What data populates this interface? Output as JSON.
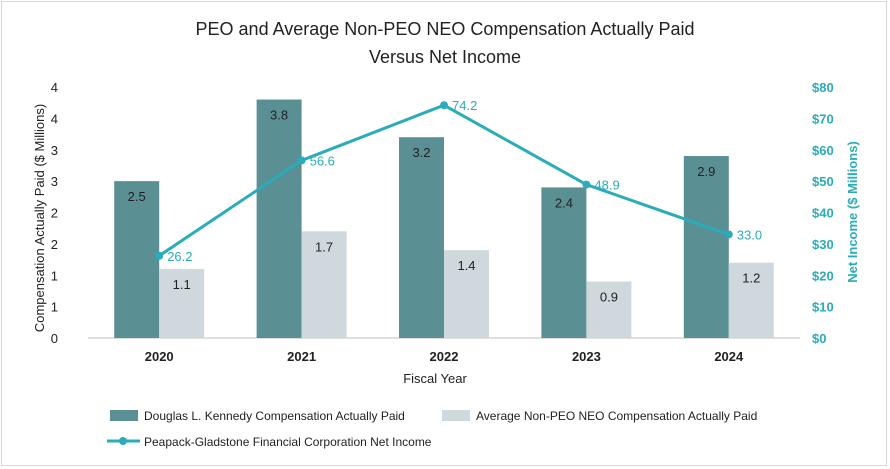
{
  "chart_data": {
    "type": "bar",
    "title_lines": [
      "PEO and Average Non-PEO NEO Compensation Actually Paid",
      "Versus Net Income"
    ],
    "xlabel": "Fiscal Year",
    "ylabel": "Compensation Actually Paid ($ Millions)",
    "y2label": "Net Income ($ Millions)",
    "categories": [
      "2020",
      "2021",
      "2022",
      "2023",
      "2024"
    ],
    "ylim": [
      0,
      4
    ],
    "y_ticks": [
      0,
      0.5,
      1,
      1.5,
      2,
      2.5,
      3,
      3.5,
      4
    ],
    "y_tick_labels": [
      "0",
      "1",
      "1",
      "2",
      "2",
      "3",
      "3",
      "4",
      "4"
    ],
    "y2lim": [
      0,
      80
    ],
    "y2_ticks": [
      0,
      10,
      20,
      30,
      40,
      50,
      60,
      70,
      80
    ],
    "y2_tick_labels": [
      "$0",
      "$10",
      "$20",
      "$30",
      "$40",
      "$50",
      "$60",
      "$70",
      "$80"
    ],
    "series": [
      {
        "name": "Douglas L. Kennedy Compensation Actually Paid",
        "kind": "bar",
        "axis": "left",
        "color": "#5a9093",
        "values": [
          2.5,
          3.8,
          3.2,
          2.4,
          2.9
        ],
        "labels": [
          "2.5",
          "3.8",
          "3.2",
          "2.4",
          "2.9"
        ]
      },
      {
        "name": "Average Non-PEO NEO Compensation Actually Paid",
        "kind": "bar",
        "axis": "left",
        "color": "#cfd8dc",
        "values": [
          1.1,
          1.7,
          1.4,
          0.9,
          1.2
        ],
        "labels": [
          "1.1",
          "1.7",
          "1.4",
          "0.9",
          "1.2"
        ]
      },
      {
        "name": "Peapack-Gladstone Financial Corporation Net Income",
        "kind": "line",
        "axis": "right",
        "color": "#2aacba",
        "values": [
          26.2,
          56.6,
          74.2,
          48.9,
          33.0
        ],
        "labels": [
          "26.2",
          "56.6",
          "74.2",
          "48.9",
          "33.0"
        ]
      }
    ],
    "legend_position": "bottom",
    "grid": false
  }
}
